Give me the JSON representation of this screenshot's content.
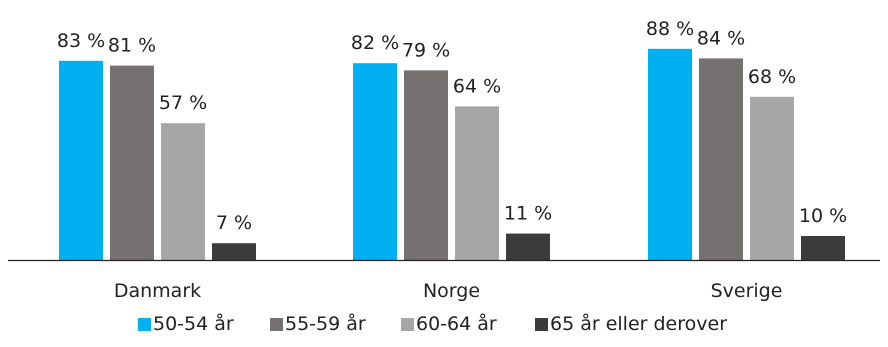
{
  "chart_data": {
    "type": "bar",
    "categories": [
      "Danmark",
      "Norge",
      "Sverige"
    ],
    "series": [
      {
        "name": "50-54 år",
        "values": [
          83,
          82,
          88
        ],
        "labels": [
          "83 %",
          "82 %",
          "88 %"
        ],
        "color": "#00b0f0"
      },
      {
        "name": "55-59 år",
        "values": [
          81,
          79,
          84
        ],
        "labels": [
          "81 %",
          "79 %",
          "84 %"
        ],
        "color": "#757171"
      },
      {
        "name": "60-64 år",
        "values": [
          57,
          64,
          68
        ],
        "labels": [
          "57 %",
          "64 %",
          "68 %"
        ],
        "color": "#a6a6a6"
      },
      {
        "name": "65 år eller derover",
        "values": [
          7,
          11,
          10
        ],
        "labels": [
          "7 %",
          "11 %",
          "10 %"
        ],
        "color": "#3b3b3b"
      }
    ],
    "ylim": [
      0,
      100
    ],
    "grid": false,
    "legend_position": "bottom"
  }
}
